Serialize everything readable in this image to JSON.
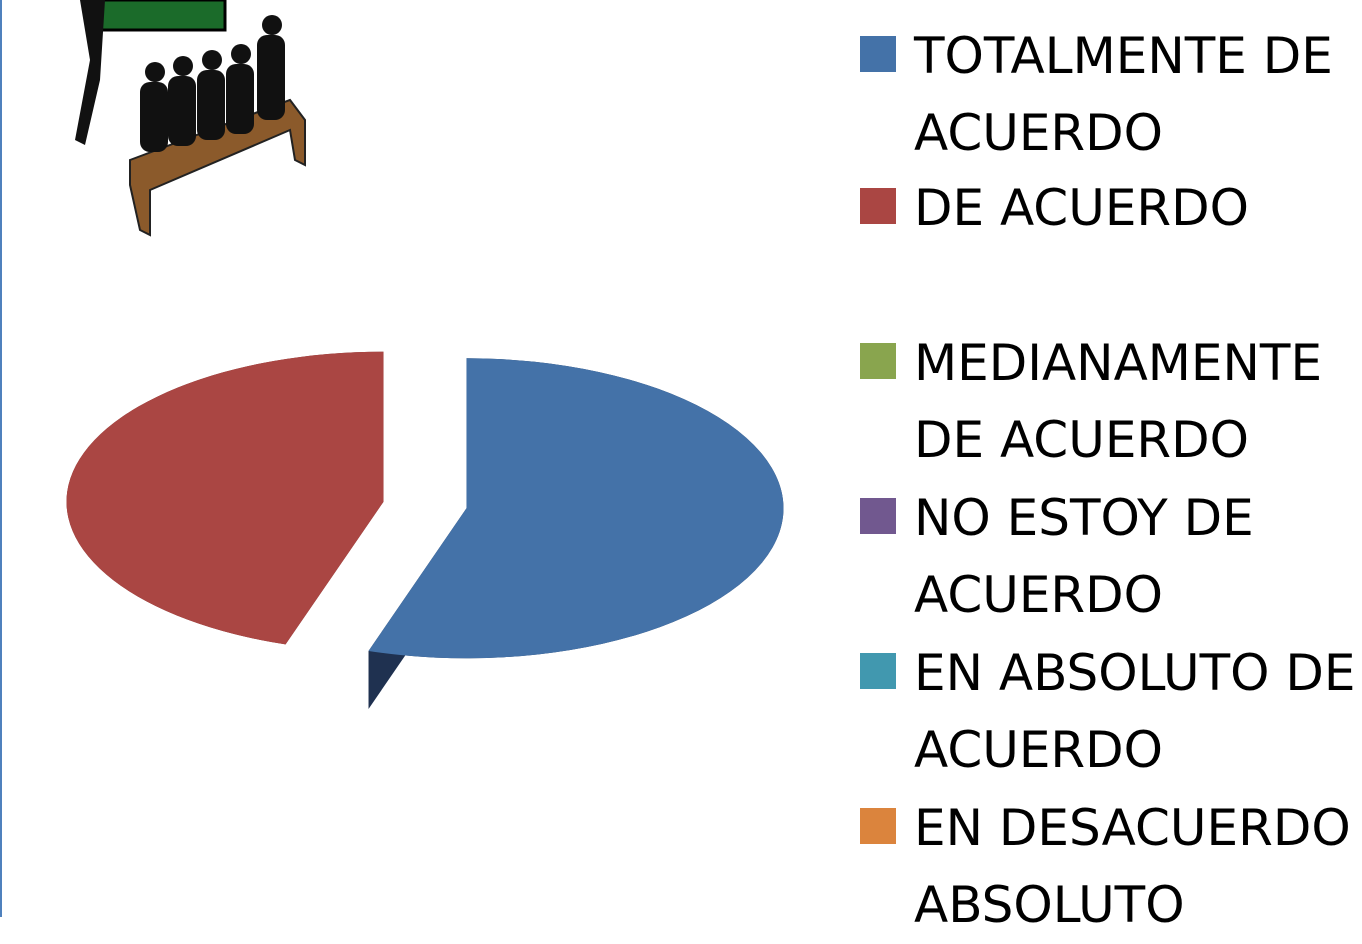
{
  "chart_data": {
    "type": "pie",
    "categories": [
      "TOTALMENTE DE ACUERDO",
      "DE ACUERDO",
      "MEDIANAMENTE DE ACUERDO",
      "NO ESTOY DE ACUERDO",
      "EN ABSOLUTO DE ACUERDO",
      "EN DESACUERDO ABSOLUTO"
    ],
    "values": [
      55,
      45,
      0,
      0,
      0,
      0
    ],
    "colors": [
      "#4472a8",
      "#aa4643",
      "#89a54e",
      "#71588f",
      "#4198af",
      "#db843d"
    ],
    "side_colors": [
      "#1f3150",
      "#6e2826",
      "#5a6d33",
      "#4a3a5e",
      "#2a6372",
      "#8f5628"
    ],
    "legend": "right"
  }
}
